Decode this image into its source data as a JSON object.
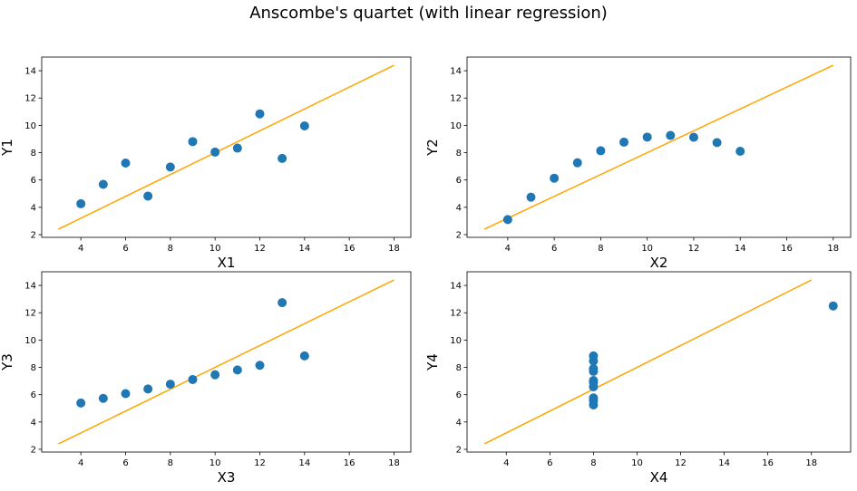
{
  "figure": {
    "title": "Anscombe's quartet (with linear regression)"
  },
  "colors": {
    "points": "#1f77b4",
    "regression": "#ffa500",
    "axes": "#000000"
  },
  "chart_data": [
    {
      "type": "scatter",
      "xlabel": "X1",
      "ylabel": "Y1",
      "xlim": [
        2.25,
        18.75
      ],
      "ylim": [
        1.8,
        15.0
      ],
      "xticks": [
        4,
        6,
        8,
        10,
        12,
        14,
        16,
        18
      ],
      "yticks": [
        2,
        4,
        6,
        8,
        10,
        12,
        14
      ],
      "x": [
        10,
        8,
        13,
        9,
        11,
        14,
        6,
        4,
        12,
        7,
        5
      ],
      "y": [
        8.04,
        6.95,
        7.58,
        8.81,
        8.33,
        9.96,
        7.24,
        4.26,
        10.84,
        4.82,
        5.68
      ],
      "regression": {
        "x": [
          3,
          18
        ],
        "y": [
          2.4,
          14.4
        ]
      }
    },
    {
      "type": "scatter",
      "xlabel": "X2",
      "ylabel": "Y2",
      "xlim": [
        2.25,
        18.75
      ],
      "ylim": [
        1.8,
        15.0
      ],
      "xticks": [
        4,
        6,
        8,
        10,
        12,
        14,
        16,
        18
      ],
      "yticks": [
        2,
        4,
        6,
        8,
        10,
        12,
        14
      ],
      "x": [
        10,
        8,
        13,
        9,
        11,
        14,
        6,
        4,
        12,
        7,
        5
      ],
      "y": [
        9.14,
        8.14,
        8.74,
        8.77,
        9.26,
        8.1,
        6.13,
        3.1,
        9.13,
        7.26,
        4.74
      ],
      "regression": {
        "x": [
          3,
          18
        ],
        "y": [
          2.4,
          14.4
        ]
      }
    },
    {
      "type": "scatter",
      "xlabel": "X3",
      "ylabel": "Y3",
      "xlim": [
        2.25,
        18.75
      ],
      "ylim": [
        1.8,
        15.0
      ],
      "xticks": [
        4,
        6,
        8,
        10,
        12,
        14,
        16,
        18
      ],
      "yticks": [
        2,
        4,
        6,
        8,
        10,
        12,
        14
      ],
      "x": [
        10,
        8,
        13,
        9,
        11,
        14,
        6,
        4,
        12,
        7,
        5
      ],
      "y": [
        7.46,
        6.77,
        12.74,
        7.11,
        7.81,
        8.84,
        6.08,
        5.39,
        8.15,
        6.42,
        5.73
      ],
      "regression": {
        "x": [
          3,
          18
        ],
        "y": [
          2.4,
          14.4
        ]
      }
    },
    {
      "type": "scatter",
      "xlabel": "X4",
      "ylabel": "Y4",
      "xlim": [
        2.2,
        19.8
      ],
      "ylim": [
        1.8,
        15.0
      ],
      "xticks": [
        4,
        6,
        8,
        10,
        12,
        14,
        16,
        18
      ],
      "yticks": [
        2,
        4,
        6,
        8,
        10,
        12,
        14
      ],
      "x": [
        8,
        8,
        8,
        8,
        8,
        8,
        8,
        19,
        8,
        8,
        8
      ],
      "y": [
        6.58,
        5.76,
        7.71,
        8.84,
        8.47,
        7.04,
        5.25,
        12.5,
        5.56,
        7.91,
        6.89
      ],
      "regression": {
        "x": [
          3,
          18
        ],
        "y": [
          2.4,
          14.4
        ]
      }
    }
  ]
}
